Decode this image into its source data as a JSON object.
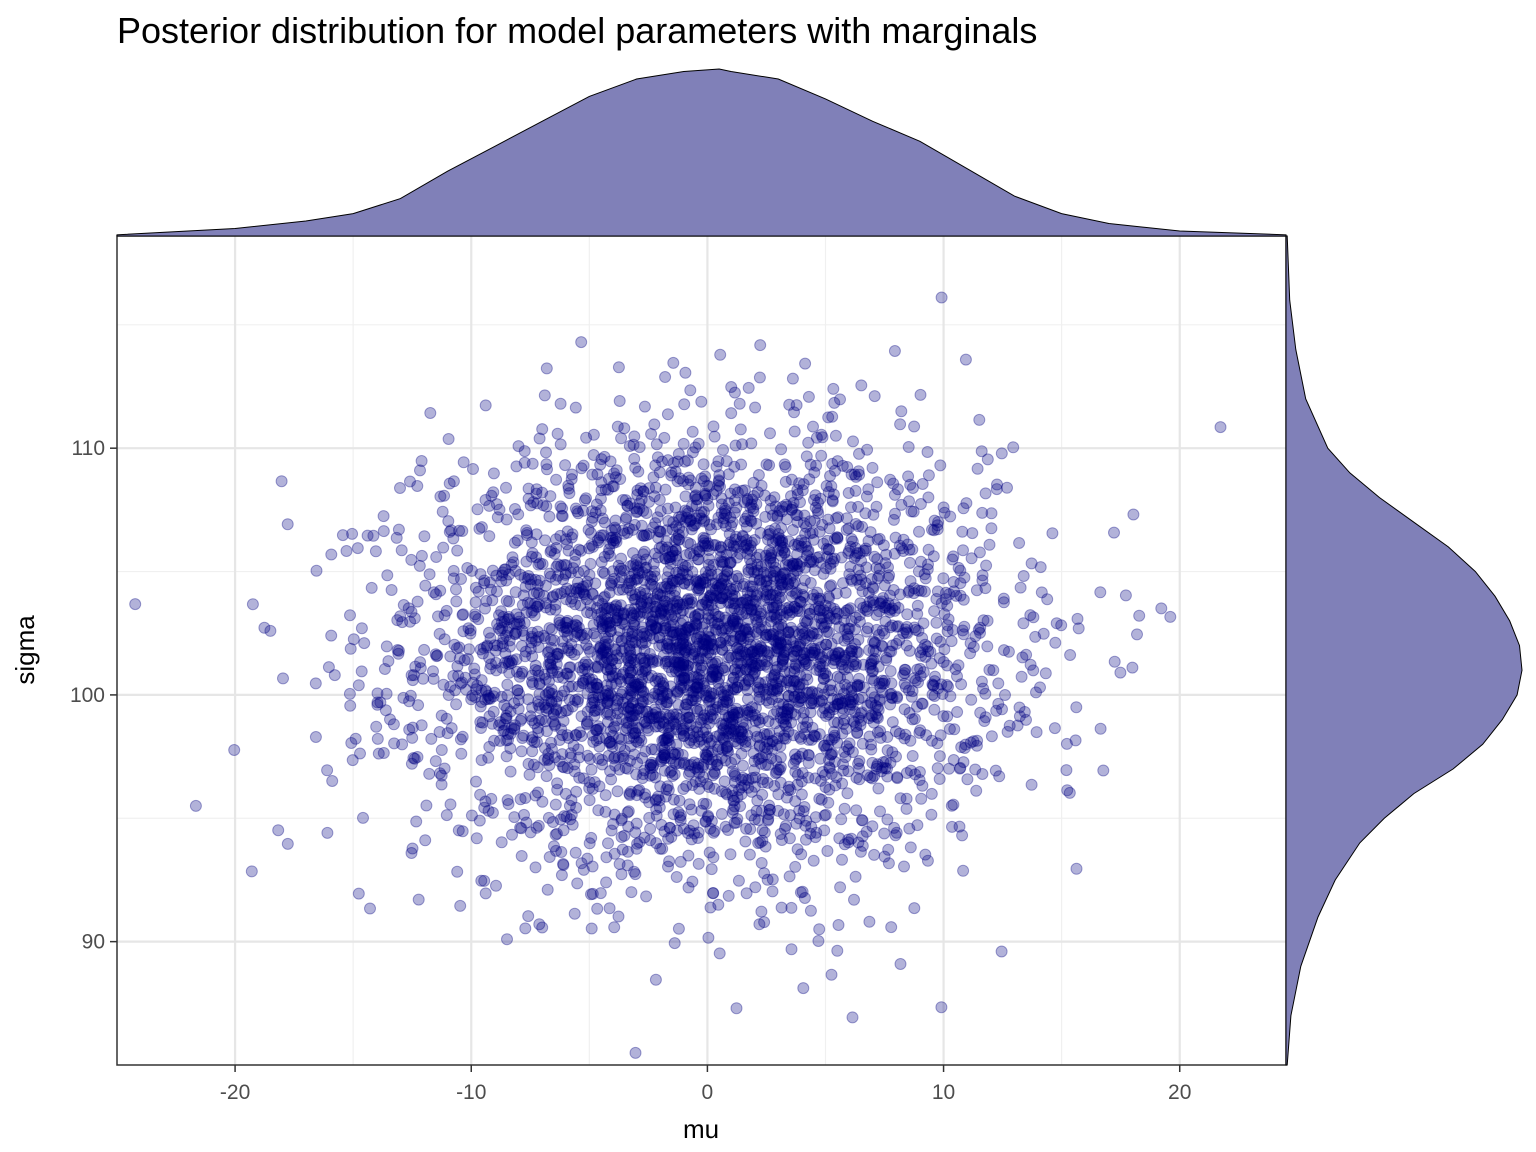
{
  "chart_data": {
    "type": "scatter",
    "title": "Posterior distribution for model parameters with marginals",
    "xlabel": "mu",
    "ylabel": "sigma",
    "xlim": [
      -25,
      24.5
    ],
    "ylim": [
      85,
      118.6
    ],
    "x_ticks": [
      -20,
      -10,
      0,
      10,
      20
    ],
    "y_ticks": [
      90,
      100,
      110
    ],
    "grid": true,
    "point_color": "#000080",
    "marginal_fill": "#8080b8",
    "distribution": {
      "mu_mean": 0,
      "mu_sd": 6,
      "sigma_mean": 101.7,
      "sigma_sd": 4.2,
      "n_points": 4000
    },
    "marginal_top": {
      "variable": "mu",
      "x": [
        -25,
        -20,
        -17,
        -15,
        -13,
        -11,
        -9,
        -7,
        -5,
        -3,
        -1,
        0.5,
        1,
        3,
        5,
        7,
        9,
        11,
        13,
        15,
        17,
        20,
        24.5
      ],
      "density": [
        0.0005,
        0.003,
        0.006,
        0.009,
        0.015,
        0.026,
        0.036,
        0.046,
        0.056,
        0.063,
        0.066,
        0.067,
        0.066,
        0.063,
        0.055,
        0.046,
        0.038,
        0.027,
        0.016,
        0.009,
        0.005,
        0.002,
        0.0005
      ]
    },
    "marginal_right": {
      "variable": "sigma",
      "y": [
        85,
        87,
        89,
        91,
        92.5,
        94,
        95,
        96,
        97,
        98,
        99,
        100,
        101,
        102,
        103,
        104,
        105,
        106,
        107,
        108,
        109,
        110,
        112,
        114,
        116,
        118.6
      ],
      "density": [
        0.0005,
        0.002,
        0.006,
        0.013,
        0.02,
        0.03,
        0.04,
        0.052,
        0.068,
        0.08,
        0.088,
        0.094,
        0.096,
        0.095,
        0.091,
        0.085,
        0.077,
        0.066,
        0.052,
        0.038,
        0.026,
        0.017,
        0.008,
        0.004,
        0.0015,
        0.0005
      ]
    }
  }
}
